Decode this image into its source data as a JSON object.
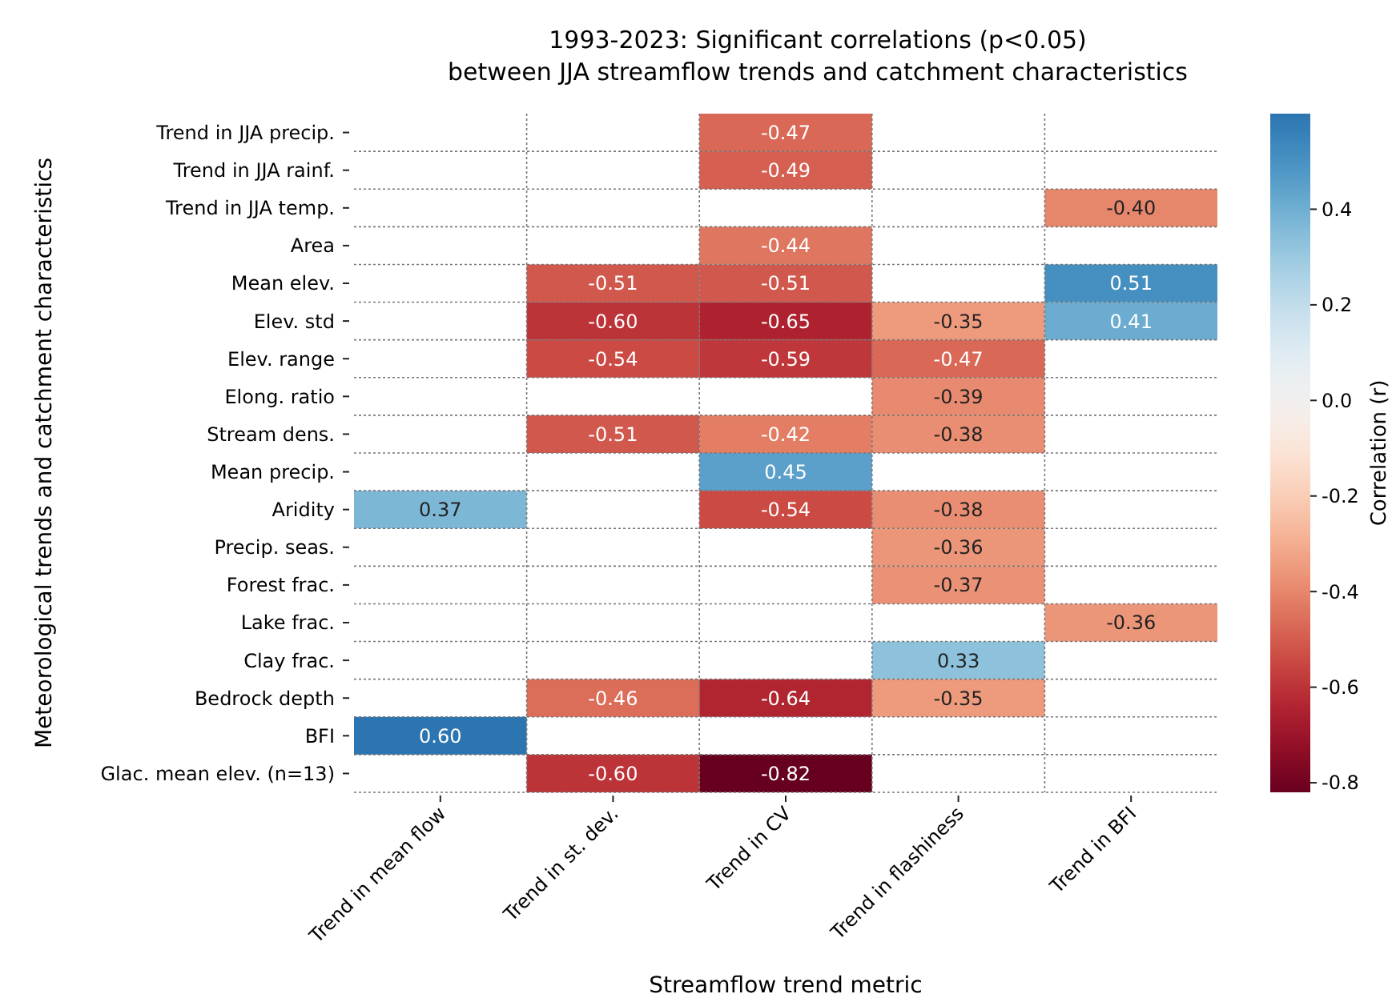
{
  "chart_data": {
    "type": "heatmap",
    "title": "1993-2023: Significant correlations (p<0.05)\nbetween JJA streamflow trends and catchment characteristics",
    "xlabel": "Streamflow trend metric",
    "ylabel": "Meteorological trends and catchment characteristics",
    "clabel": "Correlation (r)",
    "categories": [
      "Trend in mean flow",
      "Trend in st. dev.",
      "Trend in CV",
      "Trend in flashiness",
      "Trend in BFI"
    ],
    "y_categories": [
      "Trend in JJA precip.",
      "Trend in JJA rainf.",
      "Trend in JJA temp.",
      "Area",
      "Mean elev.",
      "Elev. std",
      "Elev. range",
      "Elong. ratio",
      "Stream dens.",
      "Mean precip.",
      "Aridity",
      "Precip. seas.",
      "Forest frac.",
      "Lake frac.",
      "Clay frac.",
      "Bedrock depth",
      "BFI",
      "Glac. mean elev. (n=13)"
    ],
    "cells": [
      [
        null,
        null,
        -0.47,
        null,
        null
      ],
      [
        null,
        null,
        -0.49,
        null,
        null
      ],
      [
        null,
        null,
        null,
        null,
        -0.4
      ],
      [
        null,
        null,
        -0.44,
        null,
        null
      ],
      [
        null,
        -0.51,
        -0.51,
        null,
        0.51
      ],
      [
        null,
        -0.6,
        -0.65,
        -0.35,
        0.41
      ],
      [
        null,
        -0.54,
        -0.59,
        -0.47,
        null
      ],
      [
        null,
        null,
        null,
        -0.39,
        null
      ],
      [
        null,
        -0.51,
        -0.42,
        -0.38,
        null
      ],
      [
        null,
        null,
        0.45,
        null,
        null
      ],
      [
        0.37,
        null,
        -0.54,
        -0.38,
        null
      ],
      [
        null,
        null,
        null,
        -0.36,
        null
      ],
      [
        null,
        null,
        null,
        -0.37,
        null
      ],
      [
        null,
        null,
        null,
        null,
        -0.36
      ],
      [
        null,
        null,
        null,
        0.33,
        null
      ],
      [
        null,
        -0.46,
        -0.64,
        -0.35,
        null
      ],
      [
        0.6,
        null,
        null,
        null,
        null
      ],
      [
        null,
        -0.6,
        -0.82,
        null,
        null
      ]
    ],
    "cell_labels": [
      [
        null,
        null,
        "-0.47",
        null,
        null
      ],
      [
        null,
        null,
        "-0.49",
        null,
        null
      ],
      [
        null,
        null,
        null,
        null,
        "-0.40"
      ],
      [
        null,
        null,
        "-0.44",
        null,
        null
      ],
      [
        null,
        "-0.51",
        "-0.51",
        null,
        "0.51"
      ],
      [
        null,
        "-0.60",
        "-0.65",
        "-0.35",
        "0.41"
      ],
      [
        null,
        "-0.54",
        "-0.59",
        "-0.47",
        null
      ],
      [
        null,
        null,
        null,
        "-0.39",
        null
      ],
      [
        null,
        "-0.51",
        "-0.42",
        "-0.38",
        null
      ],
      [
        null,
        null,
        "0.45",
        null,
        null
      ],
      [
        "0.37",
        null,
        "-0.54",
        "-0.38",
        null
      ],
      [
        null,
        null,
        null,
        "-0.36",
        null
      ],
      [
        null,
        null,
        null,
        "-0.37",
        null
      ],
      [
        null,
        null,
        null,
        null,
        "-0.36"
      ],
      [
        null,
        null,
        null,
        "0.33",
        null
      ],
      [
        null,
        "-0.46",
        "-0.64",
        "-0.35",
        null
      ],
      [
        "0.60",
        null,
        null,
        null,
        null
      ],
      [
        null,
        "-0.60",
        "-0.82",
        null,
        null
      ]
    ],
    "grid": true,
    "clim": [
      -0.82,
      0.6
    ],
    "cticks": [
      {
        "value": -0.8,
        "label": "-0.8"
      },
      {
        "value": -0.6,
        "label": "-0.6"
      },
      {
        "value": -0.4,
        "label": "-0.4"
      },
      {
        "value": -0.2,
        "label": "-0.2"
      },
      {
        "value": 0,
        "label": "0.0"
      },
      {
        "value": 0.2,
        "label": "0.2"
      },
      {
        "value": 0.4,
        "label": "0.4"
      }
    ]
  }
}
